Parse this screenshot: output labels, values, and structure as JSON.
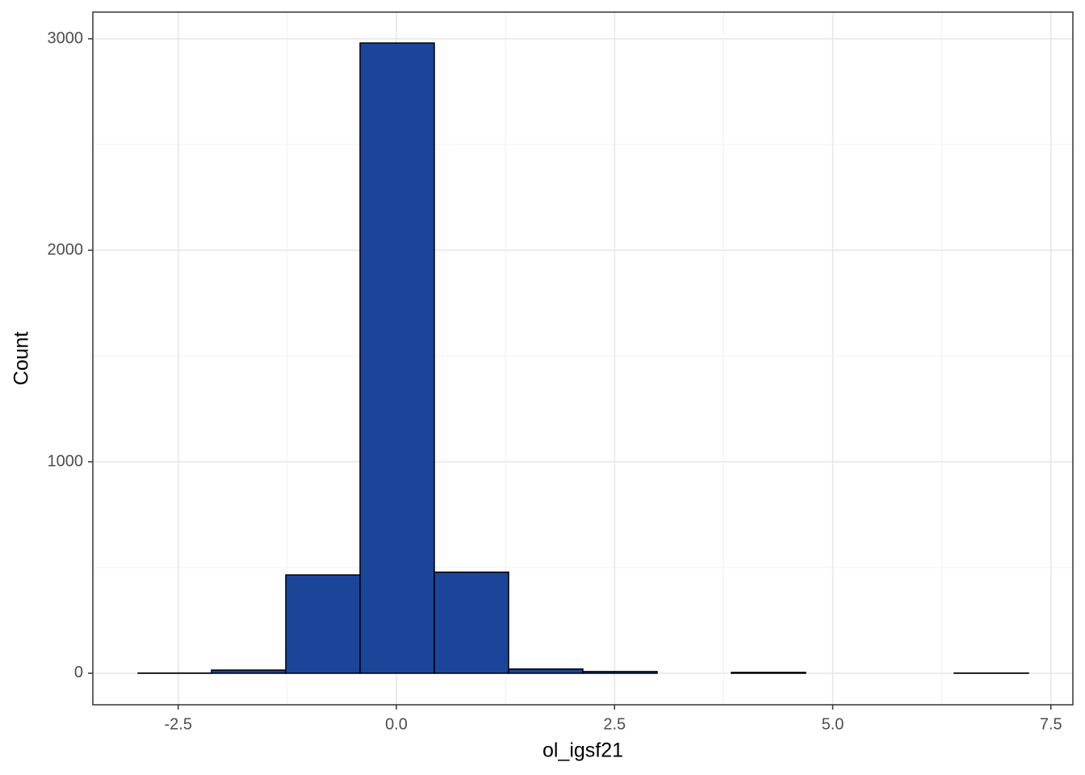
{
  "chart_data": {
    "type": "histogram",
    "x_label": "ol_igsf21",
    "y_label": "Count",
    "bins": [
      -2.96,
      -2.118,
      -1.267,
      -0.416,
      0.435,
      1.286,
      2.137,
      2.988,
      3.839,
      4.69,
      5.541,
      6.392,
      7.243
    ],
    "values": [
      1,
      15,
      465,
      2980,
      478,
      20,
      8,
      0,
      4,
      0,
      0,
      1
    ],
    "color": "#1a4599",
    "edge_color": "#000000",
    "xlim": [
      -3.478,
      7.752
    ],
    "ylim": [
      -149,
      3126
    ],
    "xticks": [
      -2.5,
      {
        "value": 0,
        "label": "0.0"
      },
      2.5,
      {
        "value": 5,
        "label": "5.0"
      },
      7.5
    ],
    "yticks": [
      0,
      1000,
      2000,
      3000
    ],
    "minor_xticks": [
      -1.25,
      1.25,
      3.75,
      6.25
    ],
    "minor_yticks": [
      500,
      1500,
      2500
    ],
    "grid": true
  }
}
